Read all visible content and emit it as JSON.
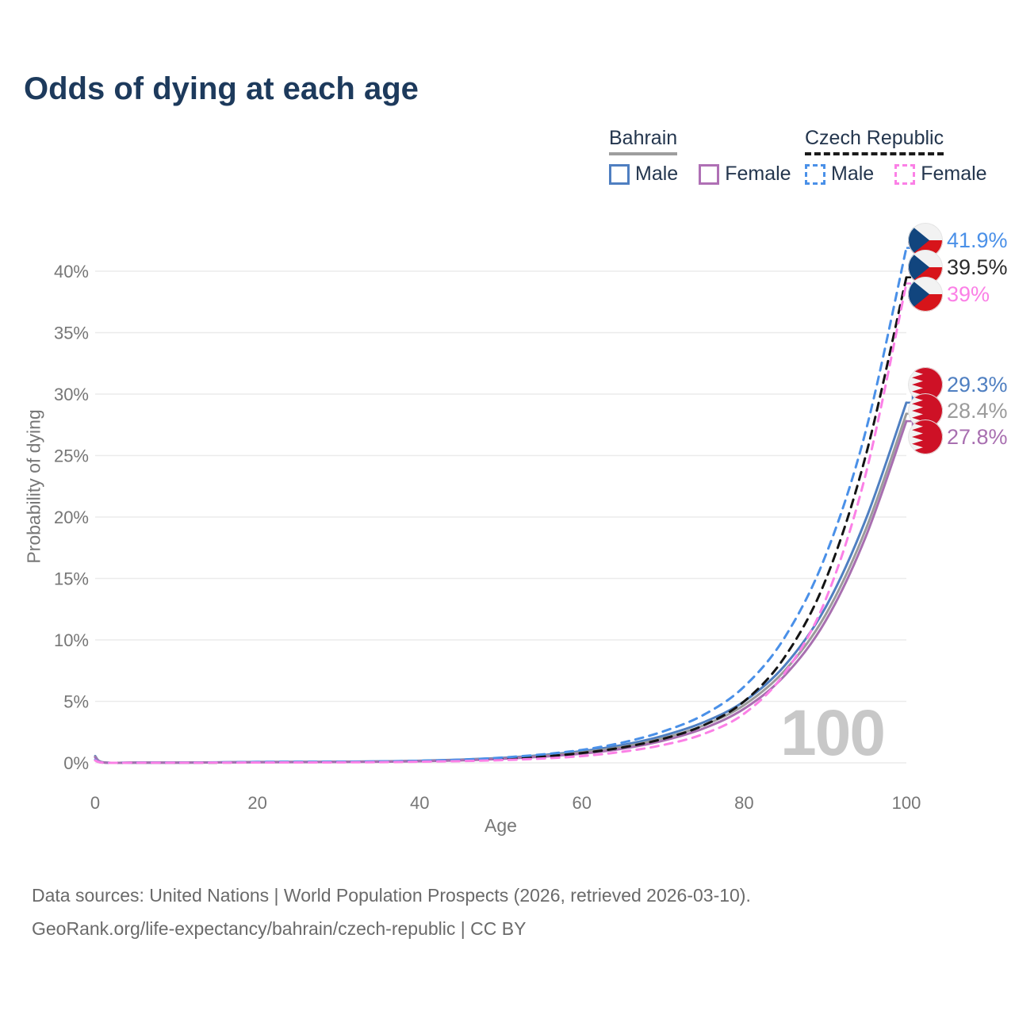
{
  "title": "Odds of dying at each age",
  "legend": {
    "groups": [
      {
        "id": "bahrain",
        "label": "Bahrain",
        "line_style": "solid",
        "line_color": "#9e9e9e",
        "items": [
          {
            "label": "Male",
            "color": "#4f7fc1",
            "style": "solid"
          },
          {
            "label": "Female",
            "color": "#af70b5",
            "style": "solid"
          }
        ]
      },
      {
        "id": "czech-republic",
        "label": "Czech Republic",
        "line_style": "dashed",
        "line_color": "#1a1a1a",
        "items": [
          {
            "label": "Male",
            "color": "#4a90e8",
            "style": "dashed"
          },
          {
            "label": "Female",
            "color": "#fb80e6",
            "style": "dashed"
          }
        ]
      }
    ]
  },
  "chart_data": {
    "type": "line",
    "title": "Odds of dying at each age",
    "xlabel": "Age",
    "ylabel": "Probability of dying",
    "xlim": [
      0,
      100
    ],
    "ylim": [
      0,
      43
    ],
    "x_ticks": [
      0,
      20,
      40,
      60,
      80,
      100
    ],
    "y_ticks": [
      0,
      5,
      10,
      15,
      20,
      25,
      30,
      35,
      40
    ],
    "y_tick_suffix": "%",
    "grid": "horizontal",
    "legend_position": "top-right",
    "watermark": "100",
    "ages": [
      0,
      1,
      5,
      10,
      15,
      20,
      25,
      30,
      35,
      40,
      45,
      50,
      55,
      60,
      65,
      70,
      75,
      80,
      85,
      90,
      95,
      100
    ],
    "series": [
      {
        "id": "czech-male",
        "country": "Czech Republic",
        "sex": "Male",
        "style": "dashed",
        "color": "#4a90e8",
        "label_color": "#4a90e8",
        "end_label": "41.9%",
        "end_value": 41.9,
        "flag": "czech",
        "values": [
          0.25,
          0.02,
          0.01,
          0.01,
          0.03,
          0.07,
          0.08,
          0.09,
          0.11,
          0.16,
          0.25,
          0.42,
          0.68,
          1.05,
          1.65,
          2.55,
          3.9,
          6.2,
          10.2,
          16.8,
          27.0,
          41.9
        ]
      },
      {
        "id": "czech-all",
        "country": "Czech Republic",
        "sex": "All",
        "style": "dashed",
        "color": "#141414",
        "label_color": "#2b2b2b",
        "end_label": "39.5%",
        "end_value": 39.5,
        "flag": "czech",
        "values": [
          0.22,
          0.018,
          0.009,
          0.009,
          0.02,
          0.045,
          0.055,
          0.065,
          0.085,
          0.12,
          0.19,
          0.31,
          0.5,
          0.8,
          1.25,
          1.95,
          3.05,
          5.0,
          8.6,
          14.8,
          25.0,
          39.5
        ]
      },
      {
        "id": "czech-female",
        "country": "Czech Republic",
        "sex": "Female",
        "style": "dashed",
        "color": "#fb80e6",
        "label_color": "#fb80e6",
        "end_label": "39%",
        "end_value": 39.0,
        "flag": "czech",
        "values": [
          0.2,
          0.016,
          0.008,
          0.008,
          0.015,
          0.025,
          0.03,
          0.04,
          0.06,
          0.09,
          0.14,
          0.22,
          0.35,
          0.55,
          0.9,
          1.45,
          2.35,
          4.0,
          7.3,
          13.2,
          23.5,
          39.0
        ]
      },
      {
        "id": "bahrain-male",
        "country": "Bahrain",
        "sex": "Male",
        "style": "solid",
        "color": "#4f7fc1",
        "label_color": "#4f7fc1",
        "end_label": "29.3%",
        "end_value": 29.3,
        "flag": "bahrain",
        "values": [
          0.55,
          0.04,
          0.02,
          0.02,
          0.04,
          0.07,
          0.08,
          0.09,
          0.12,
          0.17,
          0.26,
          0.4,
          0.62,
          0.95,
          1.45,
          2.2,
          3.3,
          5.0,
          7.9,
          12.6,
          19.8,
          29.3
        ]
      },
      {
        "id": "bahrain-all",
        "country": "Bahrain",
        "sex": "All",
        "style": "solid",
        "color": "#9b9b9b",
        "label_color": "#9b9b9b",
        "end_label": "28.4%",
        "end_value": 28.4,
        "flag": "bahrain",
        "values": [
          0.5,
          0.035,
          0.018,
          0.018,
          0.035,
          0.06,
          0.07,
          0.08,
          0.1,
          0.15,
          0.23,
          0.36,
          0.56,
          0.85,
          1.3,
          2.0,
          3.05,
          4.7,
          7.5,
          12.0,
          19.0,
          28.4
        ]
      },
      {
        "id": "bahrain-female",
        "country": "Bahrain",
        "sex": "Female",
        "style": "solid",
        "color": "#a86fb0",
        "label_color": "#a86fb0",
        "end_label": "27.8%",
        "end_value": 27.8,
        "flag": "bahrain",
        "values": [
          0.45,
          0.03,
          0.015,
          0.015,
          0.03,
          0.05,
          0.06,
          0.07,
          0.09,
          0.13,
          0.2,
          0.32,
          0.5,
          0.75,
          1.15,
          1.8,
          2.8,
          4.4,
          7.1,
          11.5,
          18.4,
          27.8
        ]
      }
    ]
  },
  "colors": {
    "title": "#1d3a5c",
    "axis_text": "#767676",
    "grid": "#ebebeb",
    "watermark": "#c8c8c8",
    "czech_flag_red": "#d7141a",
    "czech_flag_blue": "#11457e",
    "bahrain_flag_red": "#ce1126",
    "flag_white": "#f2f2f2"
  },
  "footer": {
    "line1": "Data sources: United Nations | World Population Prospects (2026, retrieved 2026-03-10).",
    "line2": "GeoRank.org/life-expectancy/bahrain/czech-republic | CC BY"
  }
}
